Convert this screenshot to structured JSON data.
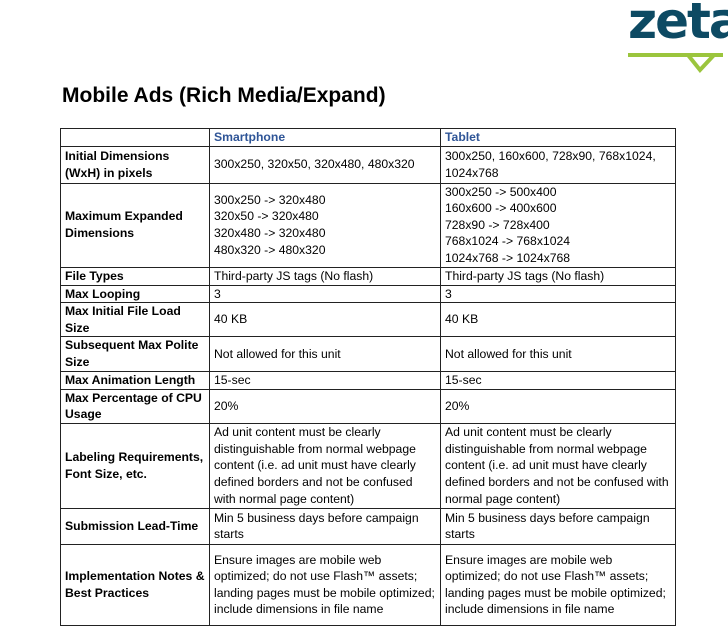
{
  "logo": {
    "text": "zeta",
    "brand_color": "#0d4a63",
    "accent_color": "#9bc53d"
  },
  "title": "Mobile Ads (Rich Media/Expand)",
  "table": {
    "headers": [
      "",
      "Smartphone",
      "Tablet"
    ],
    "rows": [
      {
        "label": "Initial Dimensions (WxH) in pixels",
        "smartphone": [
          "300x250, 320x50, 320x480, 480x320"
        ],
        "tablet": [
          "300x250, 160x600, 728x90, 768x1024,",
          "1024x768"
        ]
      },
      {
        "label": "Maximum Expanded Dimensions",
        "smartphone": [
          "300x250 -> 320x480",
          "320x50 -> 320x480",
          "320x480 -> 320x480",
          "480x320 -> 480x320"
        ],
        "tablet": [
          "300x250 -> 500x400",
          "160x600 -> 400x600",
          "728x90 -> 728x400",
          "768x1024 -> 768x1024",
          "1024x768 -> 1024x768"
        ]
      },
      {
        "label": "File Types",
        "smartphone": [
          "Third-party JS tags (No flash)"
        ],
        "tablet": [
          "Third-party JS tags (No flash)"
        ]
      },
      {
        "label": "Max Looping",
        "smartphone": [
          "3"
        ],
        "tablet": [
          "3"
        ]
      },
      {
        "label": "Max Initial File Load Size",
        "smartphone": [
          "40 KB"
        ],
        "tablet": [
          "40 KB"
        ]
      },
      {
        "label": "Subsequent Max Polite Size",
        "smartphone": [
          "Not allowed for this unit"
        ],
        "tablet": [
          "Not allowed for this unit"
        ]
      },
      {
        "label": "Max Animation Length",
        "smartphone": [
          "15-sec"
        ],
        "tablet": [
          "15-sec"
        ]
      },
      {
        "label": "Max Percentage of CPU Usage",
        "smartphone": [
          "20%"
        ],
        "tablet": [
          "20%"
        ]
      },
      {
        "label": "Labeling Requirements, Font Size, etc.",
        "smartphone": [
          "Ad unit content must be clearly distinguishable from normal webpage content (i.e. ad unit must have clearly defined borders and not be confused with normal page content)"
        ],
        "tablet": [
          "Ad unit content must be clearly distinguishable from normal webpage content (i.e. ad unit must have clearly defined borders and not be confused with normal page content)"
        ]
      },
      {
        "label": "Submission Lead-Time",
        "smartphone": [
          "Min 5 business days before campaign starts"
        ],
        "tablet": [
          "Min 5 business days before campaign starts"
        ]
      },
      {
        "label": "Implementation Notes & Best Practices",
        "smartphone": [
          "Ensure images are mobile web optimized; do not use Flash™ assets; landing pages must be mobile optimized; include dimensions in file name"
        ],
        "tablet": [
          "Ensure images are mobile web optimized; do not use Flash™ assets; landing pages must be mobile optimized; include dimensions in file name"
        ]
      }
    ]
  }
}
